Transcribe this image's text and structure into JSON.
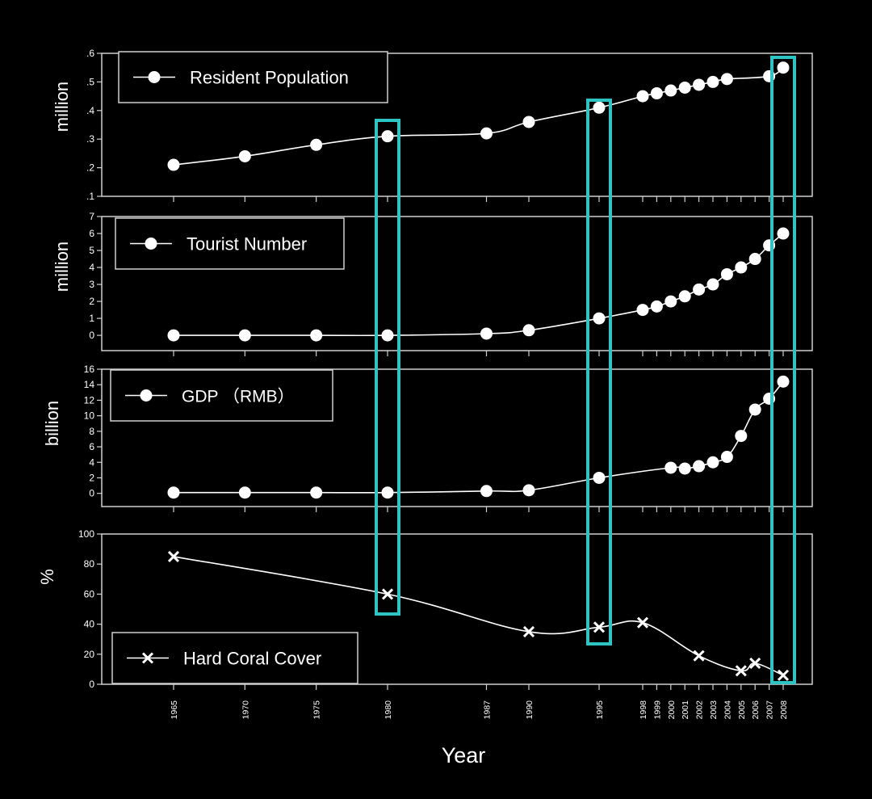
{
  "chart_data": {
    "type": "line",
    "x_label": "Year",
    "x_ticks": [
      1965,
      1970,
      1975,
      1980,
      1987,
      1990,
      1995,
      1998,
      1999,
      2000,
      2001,
      2002,
      2003,
      2004,
      2005,
      2006,
      2007,
      2008
    ],
    "highlight_years": [
      1980,
      1995,
      2008
    ],
    "highlight_color": "#2ec4c4",
    "panels": [
      {
        "id": "population",
        "ylabel": "million",
        "legend": "Resident Population",
        "marker": "circle",
        "ylim": [
          0.1,
          0.6
        ],
        "yticks": [
          0.1,
          0.2,
          0.3,
          0.4,
          0.5,
          0.6
        ],
        "ytick_labels": [
          ".1",
          ".2",
          ".3",
          ".4",
          ".5",
          ".6"
        ],
        "x": [
          1965,
          1970,
          1975,
          1980,
          1987,
          1990,
          1995,
          1998,
          1999,
          2000,
          2001,
          2002,
          2003,
          2004,
          2007,
          2008
        ],
        "y": [
          0.21,
          0.24,
          0.28,
          0.31,
          0.32,
          0.36,
          0.41,
          0.45,
          0.46,
          0.47,
          0.48,
          0.49,
          0.5,
          0.51,
          0.52,
          0.55
        ]
      },
      {
        "id": "tourists",
        "ylabel": "million",
        "legend": "Tourist Number",
        "marker": "circle",
        "ylim": [
          -0.9,
          7
        ],
        "yticks": [
          0,
          1,
          2,
          3,
          4,
          5,
          6,
          7
        ],
        "ytick_labels": [
          "0",
          "1",
          "2",
          "3",
          "4",
          "5",
          "6",
          "7"
        ],
        "x": [
          1965,
          1970,
          1975,
          1980,
          1987,
          1990,
          1995,
          1998,
          1999,
          2000,
          2001,
          2002,
          2003,
          2004,
          2005,
          2006,
          2007,
          2008
        ],
        "y": [
          0,
          0,
          0,
          0,
          0.1,
          0.3,
          1.0,
          1.5,
          1.7,
          2.0,
          2.3,
          2.7,
          3.0,
          3.6,
          4.0,
          4.5,
          5.3,
          6.0
        ]
      },
      {
        "id": "gdp",
        "ylabel": "billion",
        "legend": "GDP （RMB）",
        "marker": "circle",
        "ylim": [
          -1.7,
          16
        ],
        "yticks": [
          0,
          2,
          4,
          6,
          8,
          10,
          12,
          14,
          16
        ],
        "ytick_labels": [
          "0",
          "2",
          "4",
          "6",
          "8",
          "10",
          "12",
          "14",
          "16"
        ],
        "x": [
          1965,
          1970,
          1975,
          1980,
          1987,
          1990,
          1995,
          2000,
          2001,
          2002,
          2003,
          2004,
          2005,
          2006,
          2007,
          2008
        ],
        "y": [
          0.1,
          0.1,
          0.1,
          0.1,
          0.3,
          0.4,
          2.0,
          3.3,
          3.2,
          3.5,
          4.0,
          4.7,
          7.4,
          10.8,
          12.2,
          14.4
        ]
      },
      {
        "id": "coral",
        "ylabel": "%",
        "legend": "Hard Coral Cover",
        "marker": "x",
        "ylim": [
          0,
          100
        ],
        "yticks": [
          0,
          20,
          40,
          60,
          80,
          100
        ],
        "ytick_labels": [
          "0",
          "20",
          "40",
          "60",
          "80",
          "100"
        ],
        "x": [
          1965,
          1980,
          1990,
          1995,
          1998,
          2002,
          2005,
          2006,
          2008
        ],
        "y": [
          85,
          60,
          35,
          38,
          41,
          19,
          9,
          14,
          6
        ]
      }
    ]
  }
}
